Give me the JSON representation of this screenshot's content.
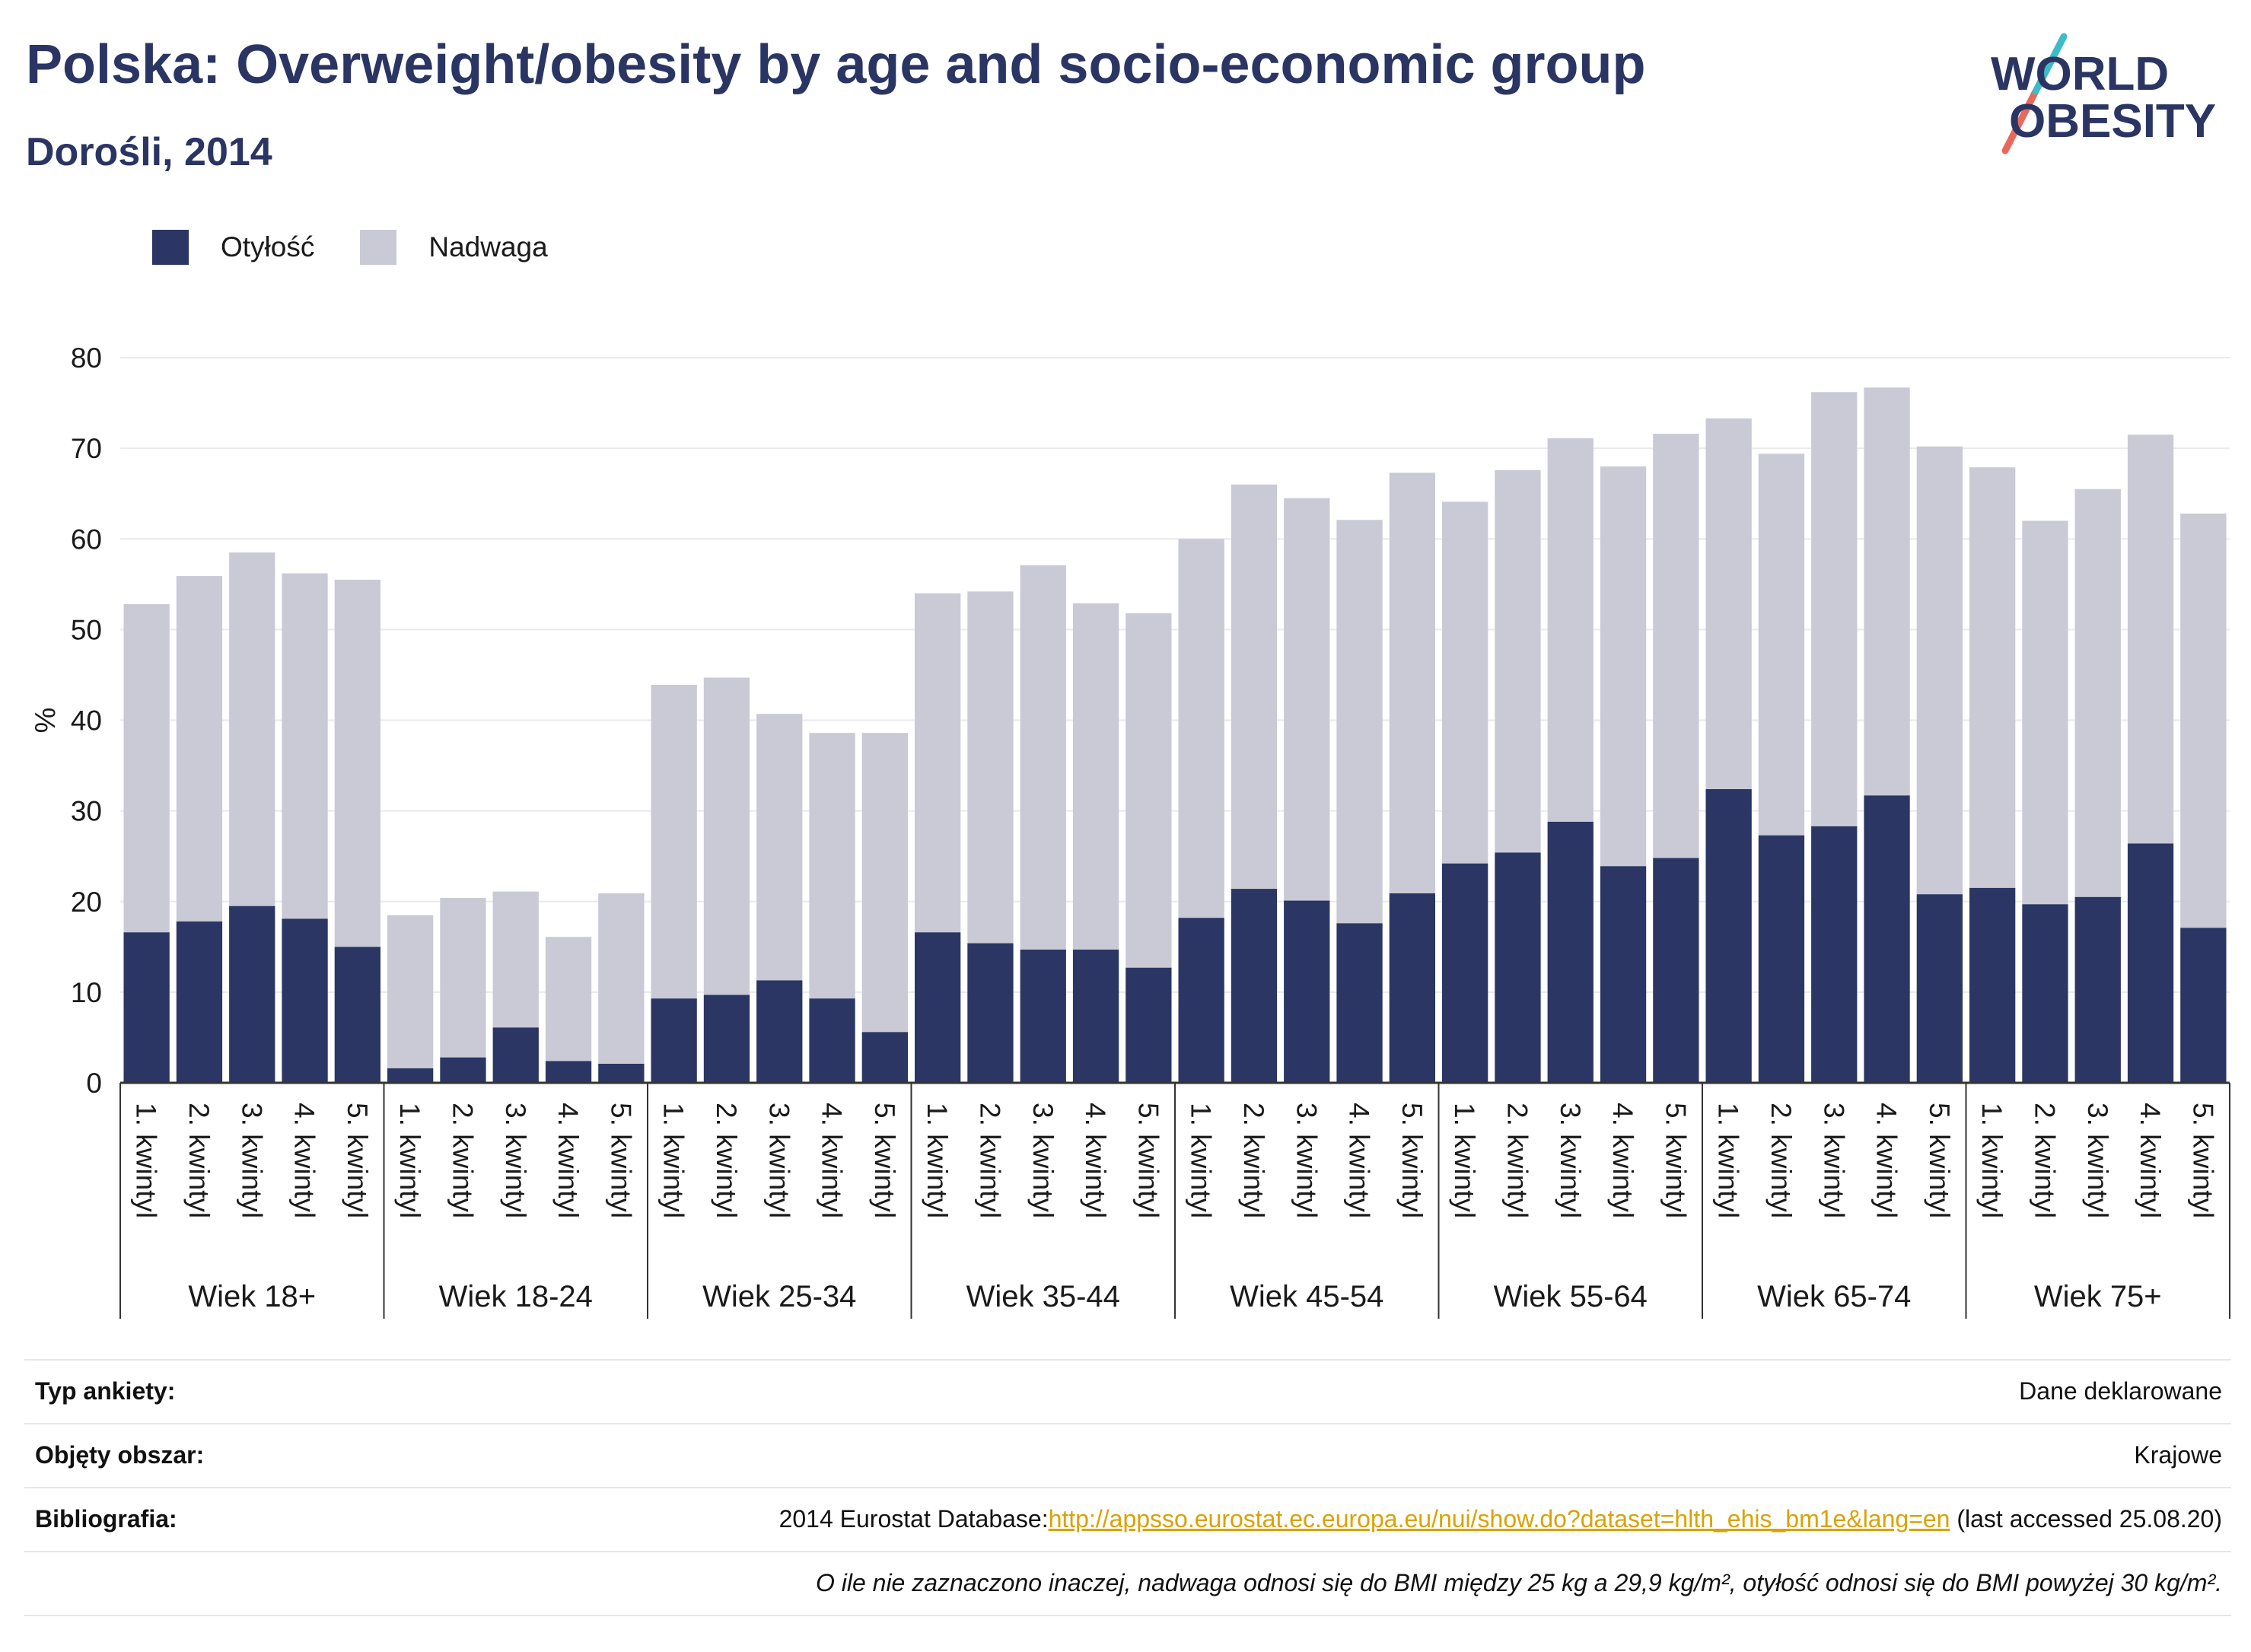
{
  "title": "Polska: Overweight/obesity by age and socio-economic group",
  "subtitle": "Dorośli, 2014",
  "logo": {
    "line1": "WORLD",
    "line2": "OBESITY"
  },
  "colors": {
    "obesity": "#2b3664",
    "overweight": "#c9cad6",
    "title": "#2a3563",
    "link": "#d9a300",
    "logo_red": "#e8695c",
    "logo_teal": "#3dbcc7"
  },
  "legend": [
    {
      "label": "Otyłość",
      "color": "#2b3664"
    },
    {
      "label": "Nadwaga",
      "color": "#c9cad6"
    }
  ],
  "chart_data": {
    "type": "bar",
    "stacked": true,
    "ylabel": "%",
    "ylim": [
      0,
      80
    ],
    "yticks": [
      0,
      10,
      20,
      30,
      40,
      50,
      60,
      70,
      80
    ],
    "grid": true,
    "legend_position": "top-left",
    "groups": [
      "Wiek 18+",
      "Wiek 18-24",
      "Wiek 25-34",
      "Wiek 35-44",
      "Wiek 45-54",
      "Wiek 55-64",
      "Wiek 65-74",
      "Wiek 75+"
    ],
    "categories": [
      "1. kwintyl",
      "2. kwintyl",
      "3. kwintyl",
      "4. kwintyl",
      "5. kwintyl"
    ],
    "series": [
      {
        "name": "Otyłość",
        "values": [
          [
            16.6,
            17.8,
            19.5,
            18.1,
            15.0
          ],
          [
            1.6,
            2.8,
            6.1,
            2.4,
            2.1
          ],
          [
            9.3,
            9.7,
            11.3,
            9.3,
            5.6
          ],
          [
            16.6,
            15.4,
            14.7,
            14.7,
            12.7
          ],
          [
            18.2,
            21.4,
            20.1,
            17.6,
            20.9
          ],
          [
            24.2,
            25.4,
            28.8,
            23.9,
            24.8
          ],
          [
            32.4,
            27.3,
            28.3,
            31.7,
            20.8
          ],
          [
            21.5,
            19.7,
            20.5,
            26.4,
            17.1
          ]
        ]
      },
      {
        "name": "Nadwaga",
        "values": [
          [
            36.2,
            38.1,
            39.0,
            38.1,
            40.5
          ],
          [
            16.9,
            17.6,
            15.0,
            13.7,
            18.8
          ],
          [
            34.6,
            35.0,
            29.4,
            29.3,
            33.0
          ],
          [
            37.4,
            38.8,
            42.4,
            38.2,
            39.1
          ],
          [
            41.8,
            44.6,
            44.4,
            44.5,
            46.4
          ],
          [
            39.9,
            42.2,
            42.3,
            44.1,
            46.8
          ],
          [
            40.9,
            42.1,
            47.9,
            45.0,
            49.4
          ],
          [
            46.4,
            42.3,
            45.0,
            45.1,
            45.7
          ]
        ]
      }
    ]
  },
  "info": {
    "survey_label": "Typ ankiety:",
    "survey_value": "Dane deklarowane",
    "area_label": "Objęty obszar:",
    "area_value": "Krajowe",
    "biblio_label": "Bibliografia:",
    "biblio_prefix": "2014 Eurostat Database:",
    "biblio_link": "http://appsso.eurostat.ec.europa.eu/nui/show.do?dataset=hlth_ehis_bm1e&lang=en",
    "biblio_suffix": " (last accessed 25.08.20)",
    "note": "O ile nie zaznaczono inaczej, nadwaga odnosi się do BMI między 25 kg a 29,9 kg/m², otyłość odnosi się do BMI powyżej 30 kg/m²."
  }
}
